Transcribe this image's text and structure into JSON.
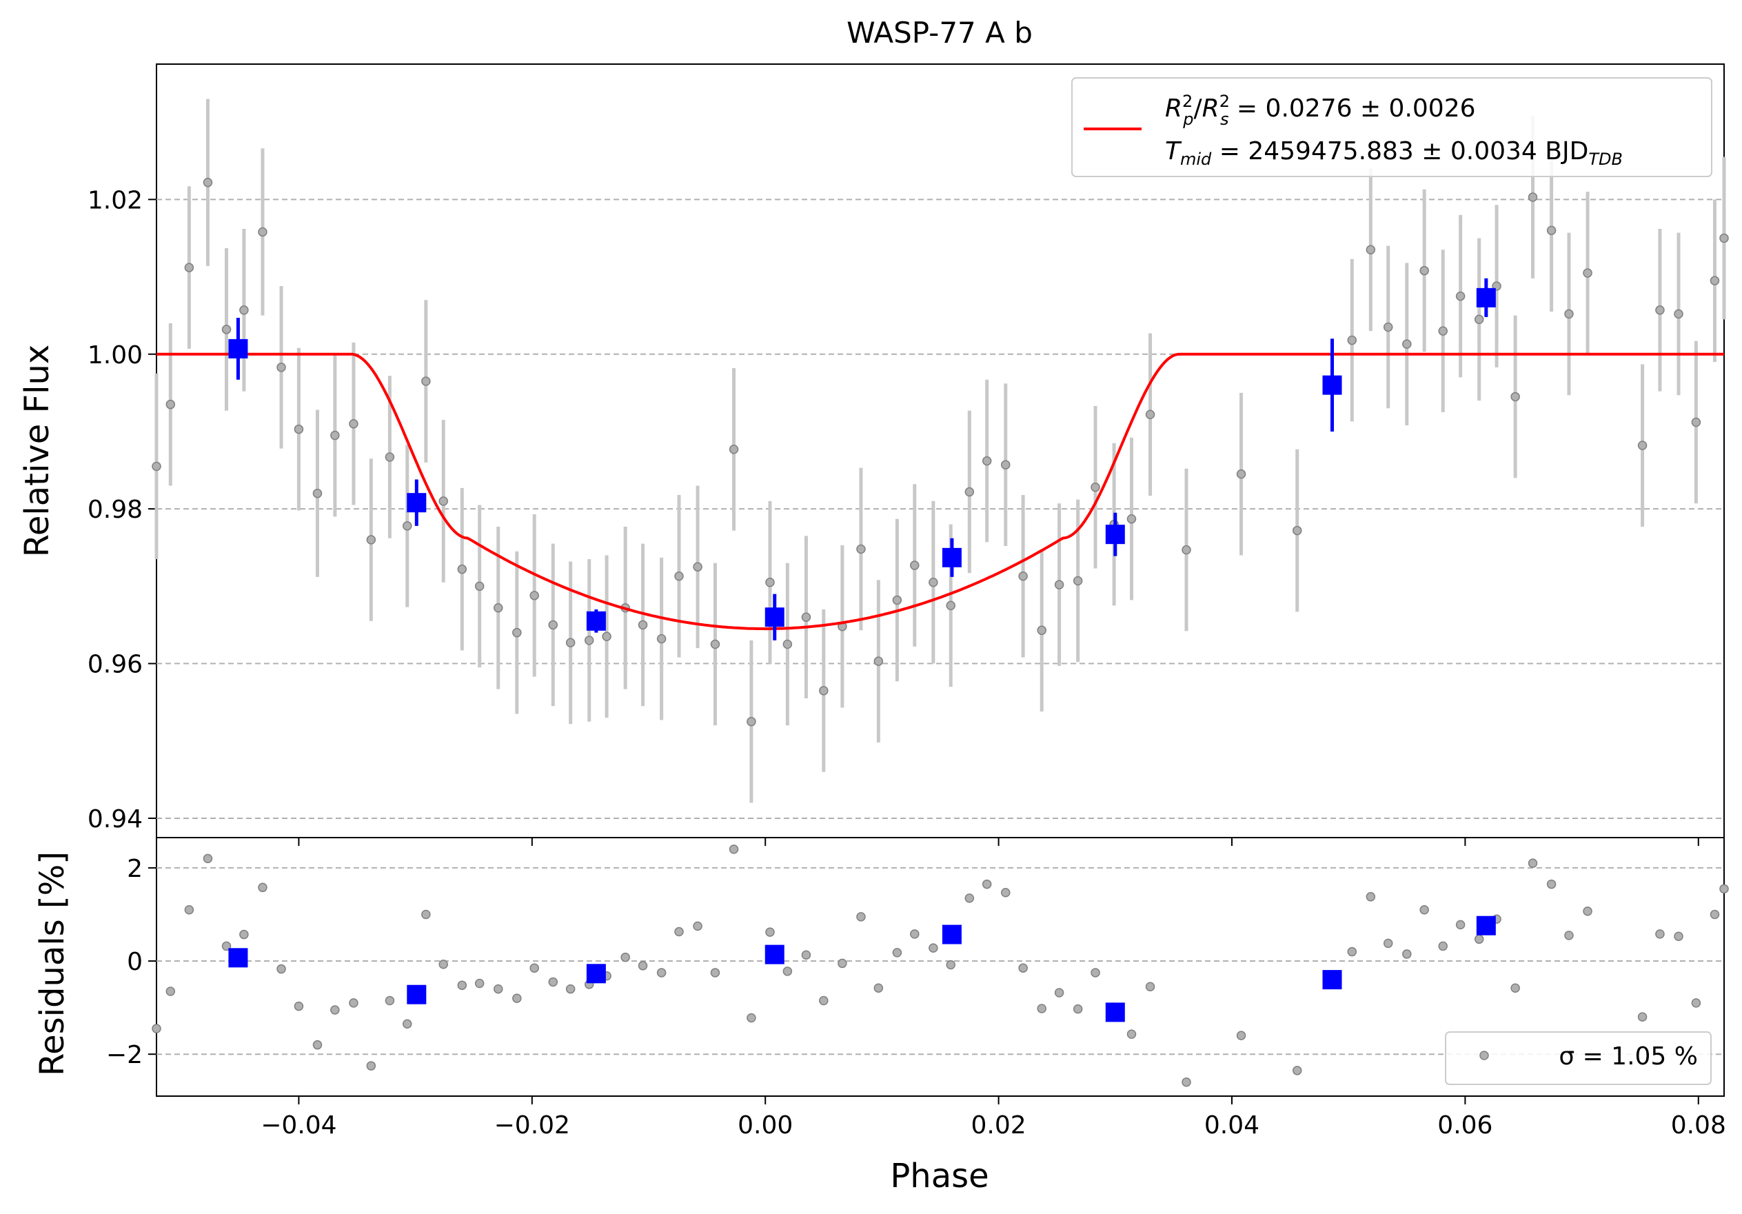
{
  "title": "WASP-77 A b",
  "chart_data": [
    {
      "type": "scatter",
      "panel": "light-curve",
      "title": "WASP-77 A b",
      "xlabel": "",
      "ylabel": "Relative Flux",
      "xlim": [
        -0.0522,
        0.0822
      ],
      "ylim": [
        0.9375,
        1.0375
      ],
      "yticks": [
        0.94,
        0.96,
        0.98,
        1.0,
        1.02
      ],
      "ytick_labels": [
        "0.94",
        "0.96",
        "0.98",
        "1.00",
        "1.02"
      ],
      "grid": "y-dashed",
      "legend": {
        "position": "top-right",
        "line_prefix": "R",
        "line1": " = 0.0276 ± 0.0026",
        "line2_prefix": "T",
        "line2_sub": "mid",
        "line2": " = 2459475.883 ± 0.0034 BJD",
        "line2_unit_sub": "TDB"
      },
      "series": [
        {
          "kind": "model",
          "color": "#ff0000",
          "params": {
            "depth_flux": 0.9645,
            "t1": -0.0355,
            "t2": -0.0255,
            "t3": 0.0255,
            "t4": 0.0355
          },
          "x": [
            -0.0522,
            -0.0355,
            -0.03,
            -0.0255,
            -0.02,
            -0.01,
            0.0,
            0.01,
            0.02,
            0.0255,
            0.03,
            0.0355,
            0.0822
          ],
          "y": [
            1.0,
            1.0,
            0.991,
            0.9762,
            0.9702,
            0.966,
            0.9645,
            0.966,
            0.9702,
            0.9762,
            0.991,
            1.0,
            1.0
          ]
        },
        {
          "kind": "data",
          "color": "#808080",
          "points": [
            [
              -0.0522,
              0.9855,
              0.012
            ],
            [
              -0.051,
              0.9935,
              0.0105
            ],
            [
              -0.0494,
              1.0112,
              0.0105
            ],
            [
              -0.0478,
              1.0222,
              0.0108
            ],
            [
              -0.0462,
              1.0032,
              0.0105
            ],
            [
              -0.0447,
              1.0057,
              0.0105
            ],
            [
              -0.0431,
              1.0158,
              0.0108
            ],
            [
              -0.0415,
              0.9983,
              0.0105
            ],
            [
              -0.04,
              0.9903,
              0.0105
            ],
            [
              -0.0384,
              0.982,
              0.0108
            ],
            [
              -0.0369,
              0.9895,
              0.0105
            ],
            [
              -0.0353,
              0.991,
              0.0105
            ],
            [
              -0.0338,
              0.976,
              0.0105
            ],
            [
              -0.0322,
              0.9867,
              0.0105
            ],
            [
              -0.0307,
              0.9778,
              0.0105
            ],
            [
              -0.0291,
              0.9965,
              0.0105
            ],
            [
              -0.0276,
              0.981,
              0.0105
            ],
            [
              -0.026,
              0.9722,
              0.0105
            ],
            [
              -0.0245,
              0.97,
              0.0105
            ],
            [
              -0.0229,
              0.9672,
              0.0105
            ],
            [
              -0.0213,
              0.964,
              0.0105
            ],
            [
              -0.0198,
              0.9688,
              0.0105
            ],
            [
              -0.0182,
              0.965,
              0.0105
            ],
            [
              -0.0167,
              0.9627,
              0.0105
            ],
            [
              -0.0151,
              0.963,
              0.0105
            ],
            [
              -0.0136,
              0.9635,
              0.0105
            ],
            [
              -0.012,
              0.9672,
              0.0105
            ],
            [
              -0.0105,
              0.965,
              0.0105
            ],
            [
              -0.0089,
              0.9632,
              0.0105
            ],
            [
              -0.0074,
              0.9713,
              0.0105
            ],
            [
              -0.0058,
              0.9725,
              0.0105
            ],
            [
              -0.0043,
              0.9625,
              0.0105
            ],
            [
              -0.0027,
              0.9877,
              0.0105
            ],
            [
              -0.0012,
              0.9525,
              0.0105
            ],
            [
              0.0004,
              0.9705,
              0.0105
            ],
            [
              0.0019,
              0.9625,
              0.0105
            ],
            [
              0.0035,
              0.966,
              0.0105
            ],
            [
              0.005,
              0.9565,
              0.0105
            ],
            [
              0.0066,
              0.9648,
              0.0105
            ],
            [
              0.0082,
              0.9748,
              0.0105
            ],
            [
              0.0097,
              0.9603,
              0.0105
            ],
            [
              0.0113,
              0.9682,
              0.0105
            ],
            [
              0.0128,
              0.9727,
              0.0105
            ],
            [
              0.0144,
              0.9705,
              0.0105
            ],
            [
              0.0159,
              0.9675,
              0.0105
            ],
            [
              0.0175,
              0.9822,
              0.0105
            ],
            [
              0.019,
              0.9862,
              0.0105
            ],
            [
              0.0206,
              0.9857,
              0.0105
            ],
            [
              0.0221,
              0.9713,
              0.0105
            ],
            [
              0.0237,
              0.9643,
              0.0105
            ],
            [
              0.0252,
              0.9702,
              0.0105
            ],
            [
              0.0268,
              0.9707,
              0.0105
            ],
            [
              0.0283,
              0.9828,
              0.0105
            ],
            [
              0.0299,
              0.978,
              0.0105
            ],
            [
              0.0314,
              0.9787,
              0.0105
            ],
            [
              0.033,
              0.9922,
              0.0105
            ],
            [
              0.0361,
              0.9747,
              0.0105
            ],
            [
              0.0408,
              0.9845,
              0.0105
            ],
            [
              0.0456,
              0.9772,
              0.0105
            ],
            [
              0.0503,
              1.0018,
              0.0105
            ],
            [
              0.0519,
              1.0135,
              0.0105
            ],
            [
              0.0534,
              1.0035,
              0.0105
            ],
            [
              0.055,
              1.0013,
              0.0105
            ],
            [
              0.0565,
              1.0108,
              0.0105
            ],
            [
              0.0581,
              1.003,
              0.0105
            ],
            [
              0.0596,
              1.0075,
              0.0105
            ],
            [
              0.0612,
              1.0045,
              0.0105
            ],
            [
              0.0627,
              1.0088,
              0.0105
            ],
            [
              0.0643,
              0.9945,
              0.0105
            ],
            [
              0.0658,
              1.0203,
              0.0105
            ],
            [
              0.0674,
              1.016,
              0.0105
            ],
            [
              0.0689,
              1.0052,
              0.0105
            ],
            [
              0.0705,
              1.0105,
              0.0105
            ],
            [
              0.0752,
              0.9882,
              0.0105
            ],
            [
              0.0767,
              1.0057,
              0.0105
            ],
            [
              0.0783,
              1.0052,
              0.0105
            ],
            [
              0.0798,
              0.9912,
              0.0105
            ],
            [
              0.0814,
              1.0095,
              0.0105
            ],
            [
              0.0822,
              1.015,
              0.0105
            ]
          ]
        },
        {
          "kind": "binned",
          "color": "#0000ff",
          "points": [
            [
              -0.0452,
              1.0007,
              0.004
            ],
            [
              -0.0299,
              0.9808,
              0.003
            ],
            [
              -0.0145,
              0.9655,
              0.0015
            ],
            [
              0.0008,
              0.966,
              0.003
            ],
            [
              0.016,
              0.9737,
              0.0025
            ],
            [
              0.03,
              0.9767,
              0.0028
            ],
            [
              0.0486,
              0.996,
              0.006
            ],
            [
              0.0618,
              1.0073,
              0.0025
            ]
          ]
        }
      ]
    },
    {
      "type": "scatter",
      "panel": "residuals",
      "xlabel": "Phase",
      "ylabel": "Residuals [%]",
      "xlim": [
        -0.0522,
        0.0822
      ],
      "ylim": [
        -2.9,
        2.65
      ],
      "yticks": [
        -2,
        0,
        2
      ],
      "ytick_labels": [
        "−2",
        "0",
        "2"
      ],
      "xticks": [
        -0.04,
        -0.02,
        0.0,
        0.02,
        0.04,
        0.06,
        0.08
      ],
      "xtick_labels": [
        "−0.04",
        "−0.02",
        "0.00",
        "0.02",
        "0.04",
        "0.06",
        "0.08"
      ],
      "grid": "y-dashed",
      "legend": {
        "position": "bottom-right",
        "label": "σ = 1.05 %"
      },
      "series": [
        {
          "kind": "data",
          "color": "#808080",
          "x": [
            -0.0522,
            -0.051,
            -0.0494,
            -0.0478,
            -0.0462,
            -0.0447,
            -0.0431,
            -0.0415,
            -0.04,
            -0.0384,
            -0.0369,
            -0.0353,
            -0.0338,
            -0.0322,
            -0.0307,
            -0.0291,
            -0.0276,
            -0.026,
            -0.0245,
            -0.0229,
            -0.0213,
            -0.0198,
            -0.0182,
            -0.0167,
            -0.0151,
            -0.0136,
            -0.012,
            -0.0105,
            -0.0089,
            -0.0074,
            -0.0058,
            -0.0043,
            -0.0027,
            -0.0012,
            0.0004,
            0.0019,
            0.0035,
            0.005,
            0.0066,
            0.0082,
            0.0097,
            0.0113,
            0.0128,
            0.0144,
            0.0159,
            0.0175,
            0.019,
            0.0206,
            0.0221,
            0.0237,
            0.0252,
            0.0268,
            0.0283,
            0.0299,
            0.0314,
            0.033,
            0.0361,
            0.0408,
            0.0456,
            0.0503,
            0.0519,
            0.0534,
            0.055,
            0.0565,
            0.0581,
            0.0596,
            0.0612,
            0.0627,
            0.0643,
            0.0658,
            0.0674,
            0.0689,
            0.0705,
            0.0752,
            0.0767,
            0.0783,
            0.0798,
            0.0814,
            0.0822
          ],
          "y": [
            -1.45,
            -0.65,
            1.1,
            2.2,
            0.32,
            0.57,
            1.58,
            -0.17,
            -0.97,
            -1.8,
            -1.05,
            -0.9,
            -2.25,
            -0.85,
            -1.35,
            1.0,
            -0.07,
            -0.52,
            -0.48,
            -0.6,
            -0.8,
            -0.15,
            -0.45,
            -0.6,
            -0.5,
            -0.32,
            0.08,
            -0.1,
            -0.25,
            0.63,
            0.75,
            -0.25,
            2.4,
            -1.22,
            0.62,
            -0.22,
            0.13,
            -0.85,
            -0.05,
            0.95,
            -0.58,
            0.18,
            0.58,
            0.28,
            -0.08,
            1.35,
            1.65,
            1.47,
            -0.15,
            -1.02,
            -0.68,
            -1.03,
            -0.25,
            -0.99,
            -1.57,
            -0.55,
            -2.6,
            -1.6,
            -2.35,
            0.2,
            1.38,
            0.38,
            0.15,
            1.1,
            0.32,
            0.78,
            0.47,
            0.9,
            -0.58,
            2.1,
            1.65,
            0.55,
            1.07,
            -1.2,
            0.58,
            0.53,
            -0.9,
            1.0,
            1.55
          ]
        },
        {
          "kind": "binned",
          "color": "#0000ff",
          "x": [
            -0.0452,
            -0.0299,
            -0.0145,
            0.0008,
            0.016,
            0.03,
            0.0486,
            0.0618
          ],
          "y": [
            0.07,
            -0.72,
            -0.27,
            0.14,
            0.57,
            -1.1,
            -0.4,
            0.76
          ]
        }
      ]
    }
  ]
}
